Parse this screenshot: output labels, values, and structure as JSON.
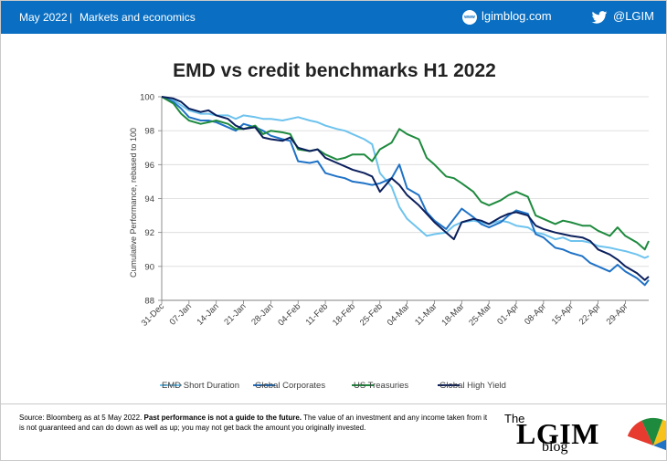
{
  "header": {
    "date": "May 2022",
    "separator": "|",
    "section": "Markets and economics",
    "web_icon_text": "www",
    "site": "lgimblog.com",
    "handle": "@LGIM",
    "icons": [
      "web-icon",
      "twitter-icon"
    ],
    "bar_color": "#0a6fc2"
  },
  "chart_data": {
    "type": "line",
    "title": "EMD vs credit benchmarks H1 2022",
    "xlabel": "",
    "ylabel": "Cumulative Performance, rebased to 100",
    "ylim": [
      88,
      100
    ],
    "yticks": [
      "88",
      "90",
      "92",
      "94",
      "96",
      "98",
      "100"
    ],
    "xticks": [
      "31-Dec",
      "07-Jan",
      "14-Jan",
      "21-Jan",
      "28-Jan",
      "04-Feb",
      "11-Feb",
      "18-Feb",
      "25-Feb",
      "04-Mar",
      "11-Mar",
      "18-Mar",
      "25-Mar",
      "01-Apr",
      "08-Apr",
      "15-Apr",
      "22-Apr",
      "29-Apr"
    ],
    "x_start": "2021-12-31",
    "x_end": "2022-05-05",
    "grid": "horizontal",
    "legend_position": "bottom",
    "series": [
      {
        "name": "EMD Short Duration",
        "color": "#6ec3ee",
        "points": [
          [
            "2021-12-31",
            100
          ],
          [
            "2022-01-03",
            99.8
          ],
          [
            "2022-01-05",
            99.5
          ],
          [
            "2022-01-07",
            99.2
          ],
          [
            "2022-01-10",
            99.0
          ],
          [
            "2022-01-12",
            99.0
          ],
          [
            "2022-01-14",
            98.9
          ],
          [
            "2022-01-17",
            98.9
          ],
          [
            "2022-01-19",
            98.7
          ],
          [
            "2022-01-21",
            98.9
          ],
          [
            "2022-01-24",
            98.8
          ],
          [
            "2022-01-26",
            98.7
          ],
          [
            "2022-01-28",
            98.7
          ],
          [
            "2022-01-31",
            98.6
          ],
          [
            "2022-02-02",
            98.7
          ],
          [
            "2022-02-04",
            98.8
          ],
          [
            "2022-02-07",
            98.6
          ],
          [
            "2022-02-09",
            98.5
          ],
          [
            "2022-02-11",
            98.3
          ],
          [
            "2022-02-14",
            98.1
          ],
          [
            "2022-02-16",
            98.0
          ],
          [
            "2022-02-18",
            97.8
          ],
          [
            "2022-02-21",
            97.5
          ],
          [
            "2022-02-23",
            97.2
          ],
          [
            "2022-02-25",
            95.5
          ],
          [
            "2022-02-28",
            94.7
          ],
          [
            "2022-03-02",
            93.5
          ],
          [
            "2022-03-04",
            92.8
          ],
          [
            "2022-03-07",
            92.2
          ],
          [
            "2022-03-09",
            91.8
          ],
          [
            "2022-03-11",
            91.9
          ],
          [
            "2022-03-14",
            92.0
          ],
          [
            "2022-03-16",
            92.4
          ],
          [
            "2022-03-18",
            92.6
          ],
          [
            "2022-03-21",
            92.7
          ],
          [
            "2022-03-23",
            92.6
          ],
          [
            "2022-03-25",
            92.5
          ],
          [
            "2022-03-28",
            92.7
          ],
          [
            "2022-03-30",
            92.6
          ],
          [
            "2022-04-01",
            92.4
          ],
          [
            "2022-04-04",
            92.3
          ],
          [
            "2022-04-06",
            92.0
          ],
          [
            "2022-04-08",
            91.9
          ],
          [
            "2022-04-11",
            91.6
          ],
          [
            "2022-04-13",
            91.7
          ],
          [
            "2022-04-15",
            91.5
          ],
          [
            "2022-04-18",
            91.5
          ],
          [
            "2022-04-20",
            91.4
          ],
          [
            "2022-04-22",
            91.2
          ],
          [
            "2022-04-25",
            91.1
          ],
          [
            "2022-04-27",
            91.0
          ],
          [
            "2022-04-29",
            90.9
          ],
          [
            "2022-05-02",
            90.7
          ],
          [
            "2022-05-04",
            90.5
          ],
          [
            "2022-05-05",
            90.6
          ]
        ]
      },
      {
        "name": "Global Corporates",
        "color": "#1f72c6",
        "points": [
          [
            "2021-12-31",
            100
          ],
          [
            "2022-01-03",
            99.7
          ],
          [
            "2022-01-05",
            99.3
          ],
          [
            "2022-01-07",
            98.8
          ],
          [
            "2022-01-10",
            98.6
          ],
          [
            "2022-01-12",
            98.6
          ],
          [
            "2022-01-14",
            98.5
          ],
          [
            "2022-01-17",
            98.2
          ],
          [
            "2022-01-19",
            98.0
          ],
          [
            "2022-01-21",
            98.4
          ],
          [
            "2022-01-24",
            98.2
          ],
          [
            "2022-01-26",
            98.0
          ],
          [
            "2022-01-28",
            97.7
          ],
          [
            "2022-01-31",
            97.5
          ],
          [
            "2022-02-02",
            97.4
          ],
          [
            "2022-02-04",
            96.2
          ],
          [
            "2022-02-07",
            96.1
          ],
          [
            "2022-02-09",
            96.2
          ],
          [
            "2022-02-11",
            95.5
          ],
          [
            "2022-02-14",
            95.3
          ],
          [
            "2022-02-16",
            95.2
          ],
          [
            "2022-02-18",
            95.0
          ],
          [
            "2022-02-21",
            94.9
          ],
          [
            "2022-02-23",
            94.8
          ],
          [
            "2022-02-25",
            94.9
          ],
          [
            "2022-02-28",
            95.2
          ],
          [
            "2022-03-02",
            96.0
          ],
          [
            "2022-03-04",
            94.6
          ],
          [
            "2022-03-07",
            94.2
          ],
          [
            "2022-03-09",
            93.2
          ],
          [
            "2022-03-11",
            92.7
          ],
          [
            "2022-03-14",
            92.2
          ],
          [
            "2022-03-16",
            92.8
          ],
          [
            "2022-03-18",
            93.4
          ],
          [
            "2022-03-21",
            92.9
          ],
          [
            "2022-03-23",
            92.5
          ],
          [
            "2022-03-25",
            92.3
          ],
          [
            "2022-03-28",
            92.6
          ],
          [
            "2022-03-30",
            93.0
          ],
          [
            "2022-04-01",
            93.3
          ],
          [
            "2022-04-04",
            93.1
          ],
          [
            "2022-04-06",
            91.9
          ],
          [
            "2022-04-08",
            91.7
          ],
          [
            "2022-04-11",
            91.1
          ],
          [
            "2022-04-13",
            91.0
          ],
          [
            "2022-04-15",
            90.8
          ],
          [
            "2022-04-18",
            90.6
          ],
          [
            "2022-04-20",
            90.2
          ],
          [
            "2022-04-22",
            90.0
          ],
          [
            "2022-04-25",
            89.7
          ],
          [
            "2022-04-27",
            90.1
          ],
          [
            "2022-04-29",
            89.7
          ],
          [
            "2022-05-02",
            89.3
          ],
          [
            "2022-05-04",
            88.9
          ],
          [
            "2022-05-05",
            89.2
          ]
        ]
      },
      {
        "name": "US Treasuries",
        "color": "#1e8a3e",
        "points": [
          [
            "2021-12-31",
            100
          ],
          [
            "2022-01-03",
            99.6
          ],
          [
            "2022-01-05",
            99.0
          ],
          [
            "2022-01-07",
            98.6
          ],
          [
            "2022-01-10",
            98.4
          ],
          [
            "2022-01-12",
            98.5
          ],
          [
            "2022-01-14",
            98.6
          ],
          [
            "2022-01-17",
            98.4
          ],
          [
            "2022-01-19",
            98.1
          ],
          [
            "2022-01-21",
            98.1
          ],
          [
            "2022-01-24",
            98.3
          ],
          [
            "2022-01-26",
            97.8
          ],
          [
            "2022-01-28",
            98.0
          ],
          [
            "2022-01-31",
            97.9
          ],
          [
            "2022-02-02",
            97.8
          ],
          [
            "2022-02-04",
            96.9
          ],
          [
            "2022-02-07",
            96.8
          ],
          [
            "2022-02-09",
            96.9
          ],
          [
            "2022-02-11",
            96.6
          ],
          [
            "2022-02-14",
            96.3
          ],
          [
            "2022-02-16",
            96.4
          ],
          [
            "2022-02-18",
            96.6
          ],
          [
            "2022-02-21",
            96.6
          ],
          [
            "2022-02-23",
            96.2
          ],
          [
            "2022-02-25",
            96.9
          ],
          [
            "2022-02-28",
            97.3
          ],
          [
            "2022-03-02",
            98.1
          ],
          [
            "2022-03-04",
            97.8
          ],
          [
            "2022-03-07",
            97.5
          ],
          [
            "2022-03-09",
            96.4
          ],
          [
            "2022-03-11",
            96.0
          ],
          [
            "2022-03-14",
            95.3
          ],
          [
            "2022-03-16",
            95.2
          ],
          [
            "2022-03-18",
            94.9
          ],
          [
            "2022-03-21",
            94.4
          ],
          [
            "2022-03-23",
            93.8
          ],
          [
            "2022-03-25",
            93.6
          ],
          [
            "2022-03-28",
            93.9
          ],
          [
            "2022-03-30",
            94.2
          ],
          [
            "2022-04-01",
            94.4
          ],
          [
            "2022-04-04",
            94.1
          ],
          [
            "2022-04-06",
            93.0
          ],
          [
            "2022-04-08",
            92.8
          ],
          [
            "2022-04-11",
            92.5
          ],
          [
            "2022-04-13",
            92.7
          ],
          [
            "2022-04-15",
            92.6
          ],
          [
            "2022-04-18",
            92.4
          ],
          [
            "2022-04-20",
            92.4
          ],
          [
            "2022-04-22",
            92.1
          ],
          [
            "2022-04-25",
            91.8
          ],
          [
            "2022-04-27",
            92.3
          ],
          [
            "2022-04-29",
            91.8
          ],
          [
            "2022-05-02",
            91.4
          ],
          [
            "2022-05-04",
            91.0
          ],
          [
            "2022-05-05",
            91.5
          ]
        ]
      },
      {
        "name": "Global High Yield",
        "color": "#0b1f5c",
        "points": [
          [
            "2021-12-31",
            100
          ],
          [
            "2022-01-03",
            99.9
          ],
          [
            "2022-01-05",
            99.7
          ],
          [
            "2022-01-07",
            99.3
          ],
          [
            "2022-01-10",
            99.1
          ],
          [
            "2022-01-12",
            99.2
          ],
          [
            "2022-01-14",
            98.9
          ],
          [
            "2022-01-17",
            98.7
          ],
          [
            "2022-01-19",
            98.3
          ],
          [
            "2022-01-21",
            98.1
          ],
          [
            "2022-01-24",
            98.2
          ],
          [
            "2022-01-26",
            97.6
          ],
          [
            "2022-01-28",
            97.5
          ],
          [
            "2022-01-31",
            97.4
          ],
          [
            "2022-02-02",
            97.6
          ],
          [
            "2022-02-04",
            97.0
          ],
          [
            "2022-02-07",
            96.8
          ],
          [
            "2022-02-09",
            96.9
          ],
          [
            "2022-02-11",
            96.4
          ],
          [
            "2022-02-14",
            96.1
          ],
          [
            "2022-02-16",
            95.9
          ],
          [
            "2022-02-18",
            95.7
          ],
          [
            "2022-02-21",
            95.5
          ],
          [
            "2022-02-23",
            95.3
          ],
          [
            "2022-02-25",
            94.4
          ],
          [
            "2022-02-28",
            95.2
          ],
          [
            "2022-03-02",
            94.8
          ],
          [
            "2022-03-04",
            94.2
          ],
          [
            "2022-03-07",
            93.6
          ],
          [
            "2022-03-09",
            93.1
          ],
          [
            "2022-03-11",
            92.6
          ],
          [
            "2022-03-14",
            92.0
          ],
          [
            "2022-03-16",
            91.6
          ],
          [
            "2022-03-18",
            92.6
          ],
          [
            "2022-03-21",
            92.8
          ],
          [
            "2022-03-23",
            92.7
          ],
          [
            "2022-03-25",
            92.5
          ],
          [
            "2022-03-28",
            92.9
          ],
          [
            "2022-03-30",
            93.1
          ],
          [
            "2022-04-01",
            93.2
          ],
          [
            "2022-04-04",
            93.0
          ],
          [
            "2022-04-06",
            92.4
          ],
          [
            "2022-04-08",
            92.2
          ],
          [
            "2022-04-11",
            92.0
          ],
          [
            "2022-04-13",
            91.9
          ],
          [
            "2022-04-15",
            91.8
          ],
          [
            "2022-04-18",
            91.7
          ],
          [
            "2022-04-20",
            91.5
          ],
          [
            "2022-04-22",
            91.0
          ],
          [
            "2022-04-25",
            90.7
          ],
          [
            "2022-04-27",
            90.4
          ],
          [
            "2022-04-29",
            90.0
          ],
          [
            "2022-05-02",
            89.6
          ],
          [
            "2022-05-04",
            89.2
          ],
          [
            "2022-05-05",
            89.4
          ]
        ]
      }
    ]
  },
  "footer": {
    "source": "Source: Bloomberg as at 5 May 2022.",
    "disclaimer_bold": "Past performance is not a guide to the future.",
    "disclaimer": "The value of an investment and any income taken from it is not guaranteed and can do down as well as up; you may not get back the amount you originally invested."
  },
  "logo": {
    "the": "The",
    "name": "LGIM",
    "blog": "blog",
    "umbrella_colors": [
      "#e63b2e",
      "#1e8a3e",
      "#f6c21b",
      "#1f72c6"
    ]
  }
}
